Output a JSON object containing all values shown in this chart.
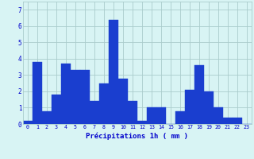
{
  "values": [
    0.2,
    3.8,
    0.8,
    1.8,
    3.7,
    3.3,
    3.3,
    1.4,
    2.5,
    6.4,
    2.8,
    1.4,
    0.2,
    1.0,
    1.0,
    0.0,
    0.8,
    2.1,
    3.6,
    2.0,
    1.0,
    0.4,
    0.4,
    0.0
  ],
  "bar_color": "#1a3ecf",
  "background_color": "#d8f4f4",
  "grid_color": "#aacccc",
  "xlabel": "Précipitations 1h ( mm )",
  "tick_color": "#0000cc",
  "ylim": [
    0,
    7.5
  ],
  "yticks": [
    0,
    1,
    2,
    3,
    4,
    5,
    6,
    7
  ],
  "bar_edge_color": "#1a3ecf"
}
